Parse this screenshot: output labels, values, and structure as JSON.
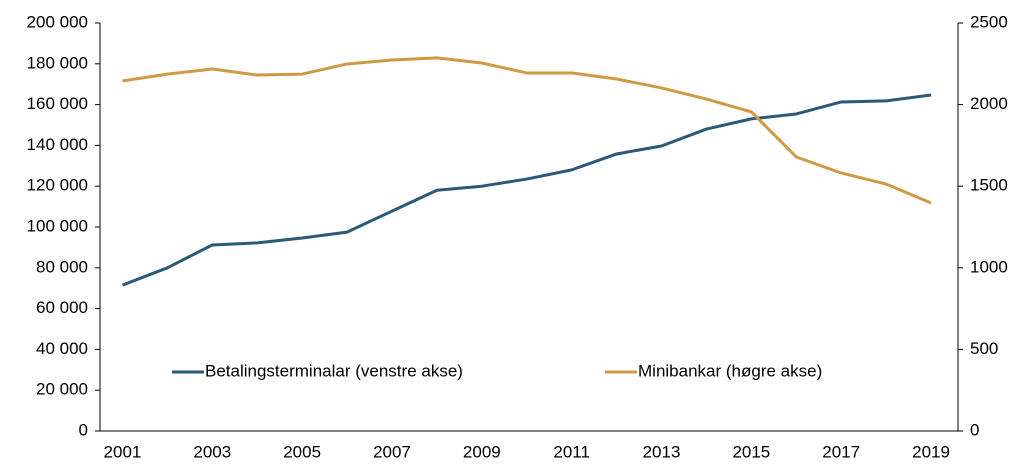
{
  "chart_data": {
    "type": "line",
    "x": [
      2001,
      2002,
      2003,
      2004,
      2005,
      2006,
      2007,
      2008,
      2009,
      2010,
      2011,
      2012,
      2013,
      2014,
      2015,
      2016,
      2017,
      2018,
      2019
    ],
    "xlim": [
      2000.5,
      2019.6
    ],
    "xticks": [
      2001,
      2003,
      2005,
      2007,
      2009,
      2011,
      2013,
      2015,
      2017,
      2019
    ],
    "series": [
      {
        "name": "Betalingsterminalar (venstre akse)",
        "color": "#2a5a78",
        "values": [
          71500,
          80000,
          91200,
          92200,
          94600,
          97500,
          107800,
          118000,
          120000,
          123500,
          128000,
          135800,
          139700,
          148000,
          153000,
          155400,
          161300,
          161800,
          164700
        ]
      },
      {
        "name": "Minibankar (høgre akse)",
        "color": "#d09a44",
        "axis": "y2",
        "values": [
          2145,
          2187,
          2218,
          2181,
          2187,
          2249,
          2273,
          2286,
          2255,
          2194,
          2194,
          2157,
          2102,
          2034,
          1955,
          1679,
          1581,
          1513,
          1397
        ]
      }
    ],
    "ylim": [
      0,
      200000
    ],
    "yticks": [
      0,
      {
        "value": 20000,
        "label": "20 000"
      },
      {
        "value": 40000,
        "label": "40 000"
      },
      {
        "value": 60000,
        "label": "60 000"
      },
      {
        "value": 80000,
        "label": "80 000"
      },
      {
        "value": 100000,
        "label": "100 000"
      },
      {
        "value": 120000,
        "label": "120 000"
      },
      {
        "value": 140000,
        "label": "140 000"
      },
      {
        "value": 160000,
        "label": "160 000"
      },
      {
        "value": 180000,
        "label": "180 000"
      },
      {
        "value": 200000,
        "label": "200 000"
      }
    ],
    "y2lim": [
      0,
      2500
    ],
    "y2ticks": [
      0,
      500,
      1000,
      1500,
      2000,
      2500
    ],
    "grid": false,
    "legend": "bottom"
  }
}
